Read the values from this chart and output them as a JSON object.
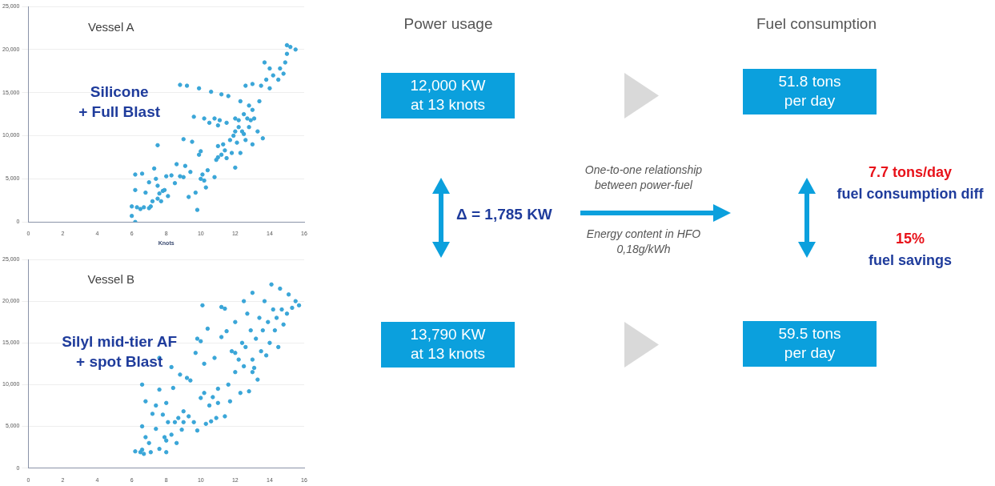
{
  "chart_data": [
    {
      "type": "scatter",
      "title": "Vessel A",
      "xlabel": "Knots",
      "annotations": [
        "Silicone\n+ Full Blast"
      ],
      "marker": "circle",
      "grid": "y",
      "xlim": [
        0,
        16
      ],
      "xticks": [
        0,
        2,
        4,
        6,
        8,
        10,
        12,
        14,
        16
      ],
      "ylim": [
        0,
        25000
      ],
      "yticks": [
        0,
        {
          "value": 5000,
          "label": "5,000"
        },
        {
          "value": 10000,
          "label": "10,000"
        },
        {
          "value": 15000,
          "label": "15,000"
        },
        {
          "value": 20000,
          "label": "20,000"
        },
        {
          "value": 25000,
          "label": "25,000"
        }
      ],
      "series": [
        {
          "color": "#3aa6d8",
          "x": [
            6.0,
            6.0,
            6.2,
            6.2,
            6.2,
            6.3,
            6.5,
            6.6,
            6.7,
            6.8,
            7.0,
            7.0,
            7.1,
            7.2,
            7.3,
            7.4,
            7.5,
            7.5,
            7.5,
            7.6,
            7.7,
            7.8,
            7.9,
            8.0,
            8.1,
            8.3,
            8.5,
            8.6,
            8.8,
            8.8,
            9.0,
            9.0,
            9.1,
            9.2,
            9.3,
            9.4,
            9.5,
            9.6,
            9.7,
            9.8,
            9.9,
            9.9,
            10.0,
            10.0,
            10.1,
            10.2,
            10.2,
            10.3,
            10.4,
            10.5,
            10.6,
            10.8,
            10.9,
            11.0,
            11.0,
            11.1,
            11.2,
            11.3,
            11.5,
            11.5,
            11.6,
            11.8,
            11.9,
            12.0,
            12.0,
            12.1,
            12.2,
            12.3,
            12.4,
            12.5,
            12.6,
            12.6,
            12.8,
            12.8,
            13.0,
            13.0,
            13.1,
            13.3,
            13.4,
            13.5,
            13.6,
            13.7,
            13.8,
            14.0,
            14.0,
            14.2,
            14.5,
            14.6,
            14.8,
            14.9,
            15.0,
            15.0,
            15.2,
            15.5,
            11.2,
            11.4,
            11.7,
            12.0,
            12.2,
            12.5,
            12.7,
            12.9,
            13.0,
            11.0,
            10.8,
            12.3
          ],
          "values": [
            700,
            1800,
            0,
            3700,
            5500,
            1700,
            1500,
            5600,
            1700,
            3400,
            1600,
            4600,
            1800,
            2400,
            6200,
            5000,
            8900,
            4200,
            2700,
            3300,
            2400,
            3600,
            3700,
            5300,
            3000,
            5400,
            4500,
            6700,
            5300,
            15900,
            5200,
            9600,
            6500,
            15800,
            2900,
            5800,
            9300,
            12200,
            3400,
            1400,
            15500,
            7800,
            5000,
            8200,
            5500,
            4800,
            12000,
            4000,
            6000,
            11500,
            15100,
            5200,
            7200,
            7500,
            8800,
            11800,
            14800,
            9000,
            7400,
            11500,
            14600,
            8000,
            10000,
            6300,
            12000,
            9200,
            11000,
            14000,
            10500,
            12500,
            9500,
            15800,
            11000,
            13500,
            16000,
            9000,
            12000,
            10500,
            14000,
            15800,
            9700,
            18500,
            16500,
            15500,
            17800,
            17000,
            16500,
            17800,
            17200,
            18500,
            19500,
            20500,
            20300,
            20000,
            7800,
            8300,
            9500,
            10500,
            11800,
            10200,
            12000,
            11800,
            13000,
            11200,
            12000,
            8000
          ]
        }
      ]
    },
    {
      "type": "scatter",
      "title": "Vessel B",
      "annotations": [
        "Silyl mid-tier AF\n+ spot Blast"
      ],
      "marker": "circle",
      "grid": "y",
      "xlim": [
        0,
        16
      ],
      "xticks": [
        0,
        2,
        4,
        6,
        8,
        10,
        12,
        14,
        16
      ],
      "ylim": [
        0,
        25000
      ],
      "yticks": [
        0,
        {
          "value": 5000,
          "label": "5,000"
        },
        {
          "value": 10000,
          "label": "10,000"
        },
        {
          "value": 15000,
          "label": "15,000"
        },
        {
          "value": 20000,
          "label": "20,000"
        },
        {
          "value": 25000,
          "label": "25,000"
        }
      ],
      "series": [
        {
          "color": "#3aa6d8",
          "x": [
            6.2,
            6.5,
            6.6,
            6.6,
            6.6,
            6.7,
            6.8,
            6.8,
            7.0,
            7.1,
            7.2,
            7.4,
            7.4,
            7.6,
            7.6,
            7.6,
            7.8,
            7.9,
            8.0,
            8.0,
            8.0,
            8.1,
            8.3,
            8.3,
            8.4,
            8.5,
            8.6,
            8.7,
            8.8,
            8.9,
            9.0,
            9.0,
            9.2,
            9.3,
            9.4,
            9.6,
            9.7,
            9.8,
            9.8,
            10.0,
            10.0,
            10.1,
            10.2,
            10.2,
            10.3,
            10.4,
            10.5,
            10.6,
            10.7,
            10.8,
            10.9,
            11.0,
            11.0,
            11.2,
            11.2,
            11.4,
            11.4,
            11.5,
            11.6,
            11.7,
            11.8,
            12.0,
            12.0,
            12.2,
            12.3,
            12.4,
            12.5,
            12.5,
            12.6,
            12.7,
            12.8,
            12.9,
            13.0,
            13.0,
            13.1,
            13.2,
            13.3,
            13.4,
            13.5,
            13.6,
            13.7,
            13.8,
            13.9,
            14.0,
            14.1,
            14.2,
            14.3,
            14.4,
            14.6,
            14.7,
            14.8,
            15.0,
            15.1,
            15.3,
            15.5,
            15.7,
            14.5,
            13.0,
            12.0
          ],
          "values": [
            2000,
            1900,
            2200,
            5000,
            10000,
            1700,
            3700,
            8000,
            3000,
            1900,
            6500,
            4700,
            7500,
            13200,
            9400,
            2300,
            6400,
            3700,
            3300,
            1900,
            7800,
            5500,
            4000,
            12100,
            9600,
            5500,
            3000,
            6000,
            11200,
            4600,
            5500,
            6800,
            10800,
            6200,
            10500,
            5500,
            13800,
            15500,
            4500,
            15200,
            8400,
            19500,
            12500,
            9000,
            5300,
            16700,
            7500,
            5600,
            8500,
            13200,
            6000,
            9500,
            7800,
            19300,
            15700,
            19100,
            6200,
            16400,
            10000,
            8000,
            14000,
            17500,
            11500,
            13000,
            9000,
            15000,
            12200,
            20000,
            14500,
            18500,
            9200,
            16500,
            13000,
            21000,
            12000,
            15500,
            10600,
            18000,
            14000,
            16500,
            20000,
            13500,
            17500,
            15000,
            22000,
            19000,
            16500,
            18000,
            21500,
            19000,
            17200,
            18500,
            20800,
            19200,
            20000,
            19500,
            14500,
            11500,
            13800
          ]
        }
      ]
    },
    {
      "type": "other",
      "annotations": [
        "Power usage",
        "Fuel consumption",
        "12,000 KW\nat 13 knots",
        "51.8 tons\nper day",
        "One-to-one relationship\nbetween power-fuel",
        "Δ = 1,785 KW",
        "Energy content in HFO\n0,18g/kWh",
        "7.7 tons/day",
        "fuel consumption diff",
        "15%",
        "fuel savings",
        "13,790 KW\nat 13 knots",
        "59.5 tons\nper day"
      ]
    }
  ]
}
